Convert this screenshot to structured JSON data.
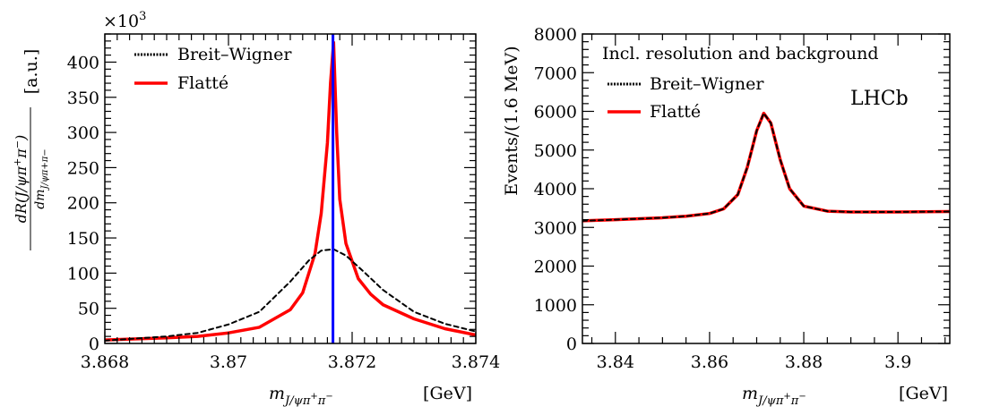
{
  "chart_data": [
    {
      "type": "line",
      "xlabel": "m_{J/ψπ+π−}",
      "xlabel_unit": "[GeV]",
      "ylabel": "dR(J/ψπ+π−) / dm_{J/ψπ+π−}",
      "ylabel_unit": "[a.u.]",
      "y_multiplier": "×10",
      "y_multiplier_exp": "3",
      "xlim": [
        3.868,
        3.874
      ],
      "ylim": [
        0,
        440
      ],
      "x_ticks": [
        "3.868",
        "3.87",
        "3.872",
        "3.874"
      ],
      "x_tick_values": [
        3.868,
        3.87,
        3.872,
        3.874
      ],
      "y_ticks": [
        "0",
        "50",
        "100",
        "150",
        "200",
        "250",
        "300",
        "350",
        "400"
      ],
      "y_tick_values": [
        0,
        50,
        100,
        150,
        200,
        250,
        300,
        350,
        400
      ],
      "legend_position": "top-left",
      "grid": false,
      "vertical_marker": {
        "x": 3.87169,
        "color": "#0000ff"
      },
      "series": [
        {
          "name": "Breit–Wigner",
          "style": "dashed",
          "color": "#000000",
          "x": [
            3.868,
            3.869,
            3.8695,
            3.87,
            3.8705,
            3.871,
            3.8713,
            3.8715,
            3.8717,
            3.8719,
            3.8722,
            3.8725,
            3.873,
            3.8735,
            3.874
          ],
          "y": [
            4,
            10,
            15,
            27,
            45,
            88,
            118,
            132,
            134,
            125,
            101,
            76,
            45,
            28,
            17
          ]
        },
        {
          "name": "Flatté",
          "style": "solid",
          "color": "#ff0000",
          "x": [
            3.868,
            3.869,
            3.8695,
            3.87,
            3.8705,
            3.871,
            3.8712,
            3.8714,
            3.8715,
            3.8716,
            3.87165,
            3.8717,
            3.87175,
            3.8718,
            3.8719,
            3.8721,
            3.8723,
            3.8725,
            3.873,
            3.8735,
            3.874
          ],
          "y": [
            5,
            8,
            10,
            15,
            23,
            48,
            72,
            128,
            185,
            285,
            370,
            428,
            300,
            205,
            142,
            92,
            70,
            55,
            35,
            21,
            12
          ]
        }
      ]
    },
    {
      "type": "line",
      "xlabel": "m_{J/ψπ+π−}",
      "xlabel_unit": "[GeV]",
      "ylabel": "Events/(1.6 MeV)",
      "xlim": [
        3.833,
        3.911
      ],
      "ylim": [
        0,
        8000
      ],
      "x_ticks": [
        "3.84",
        "3.86",
        "3.88",
        "3.9"
      ],
      "x_tick_values": [
        3.84,
        3.86,
        3.88,
        3.9
      ],
      "y_ticks": [
        "0",
        "1000",
        "2000",
        "3000",
        "4000",
        "5000",
        "6000",
        "7000",
        "8000"
      ],
      "y_tick_values": [
        0,
        1000,
        2000,
        3000,
        4000,
        5000,
        6000,
        7000,
        8000
      ],
      "legend_title": "Incl. resolution and background",
      "legend_position": "top-right",
      "annotation": "LHCb",
      "grid": false,
      "series": [
        {
          "name": "Breit–Wigner",
          "style": "dashed",
          "color": "#000000",
          "x": [
            3.833,
            3.84,
            3.85,
            3.855,
            3.86,
            3.863,
            3.866,
            3.868,
            3.87,
            3.8715,
            3.873,
            3.875,
            3.877,
            3.88,
            3.885,
            3.89,
            3.9,
            3.911
          ],
          "y": [
            3170,
            3200,
            3250,
            3290,
            3360,
            3480,
            3850,
            4550,
            5500,
            5950,
            5700,
            4750,
            4000,
            3550,
            3420,
            3400,
            3400,
            3410
          ]
        },
        {
          "name": "Flatté",
          "style": "solid",
          "color": "#ff0000",
          "x": [
            3.833,
            3.84,
            3.85,
            3.855,
            3.86,
            3.863,
            3.866,
            3.868,
            3.87,
            3.8715,
            3.873,
            3.875,
            3.877,
            3.88,
            3.885,
            3.89,
            3.9,
            3.911
          ],
          "y": [
            3170,
            3200,
            3250,
            3290,
            3360,
            3480,
            3850,
            4550,
            5500,
            5950,
            5700,
            4750,
            4000,
            3550,
            3420,
            3400,
            3400,
            3410
          ]
        }
      ]
    }
  ]
}
